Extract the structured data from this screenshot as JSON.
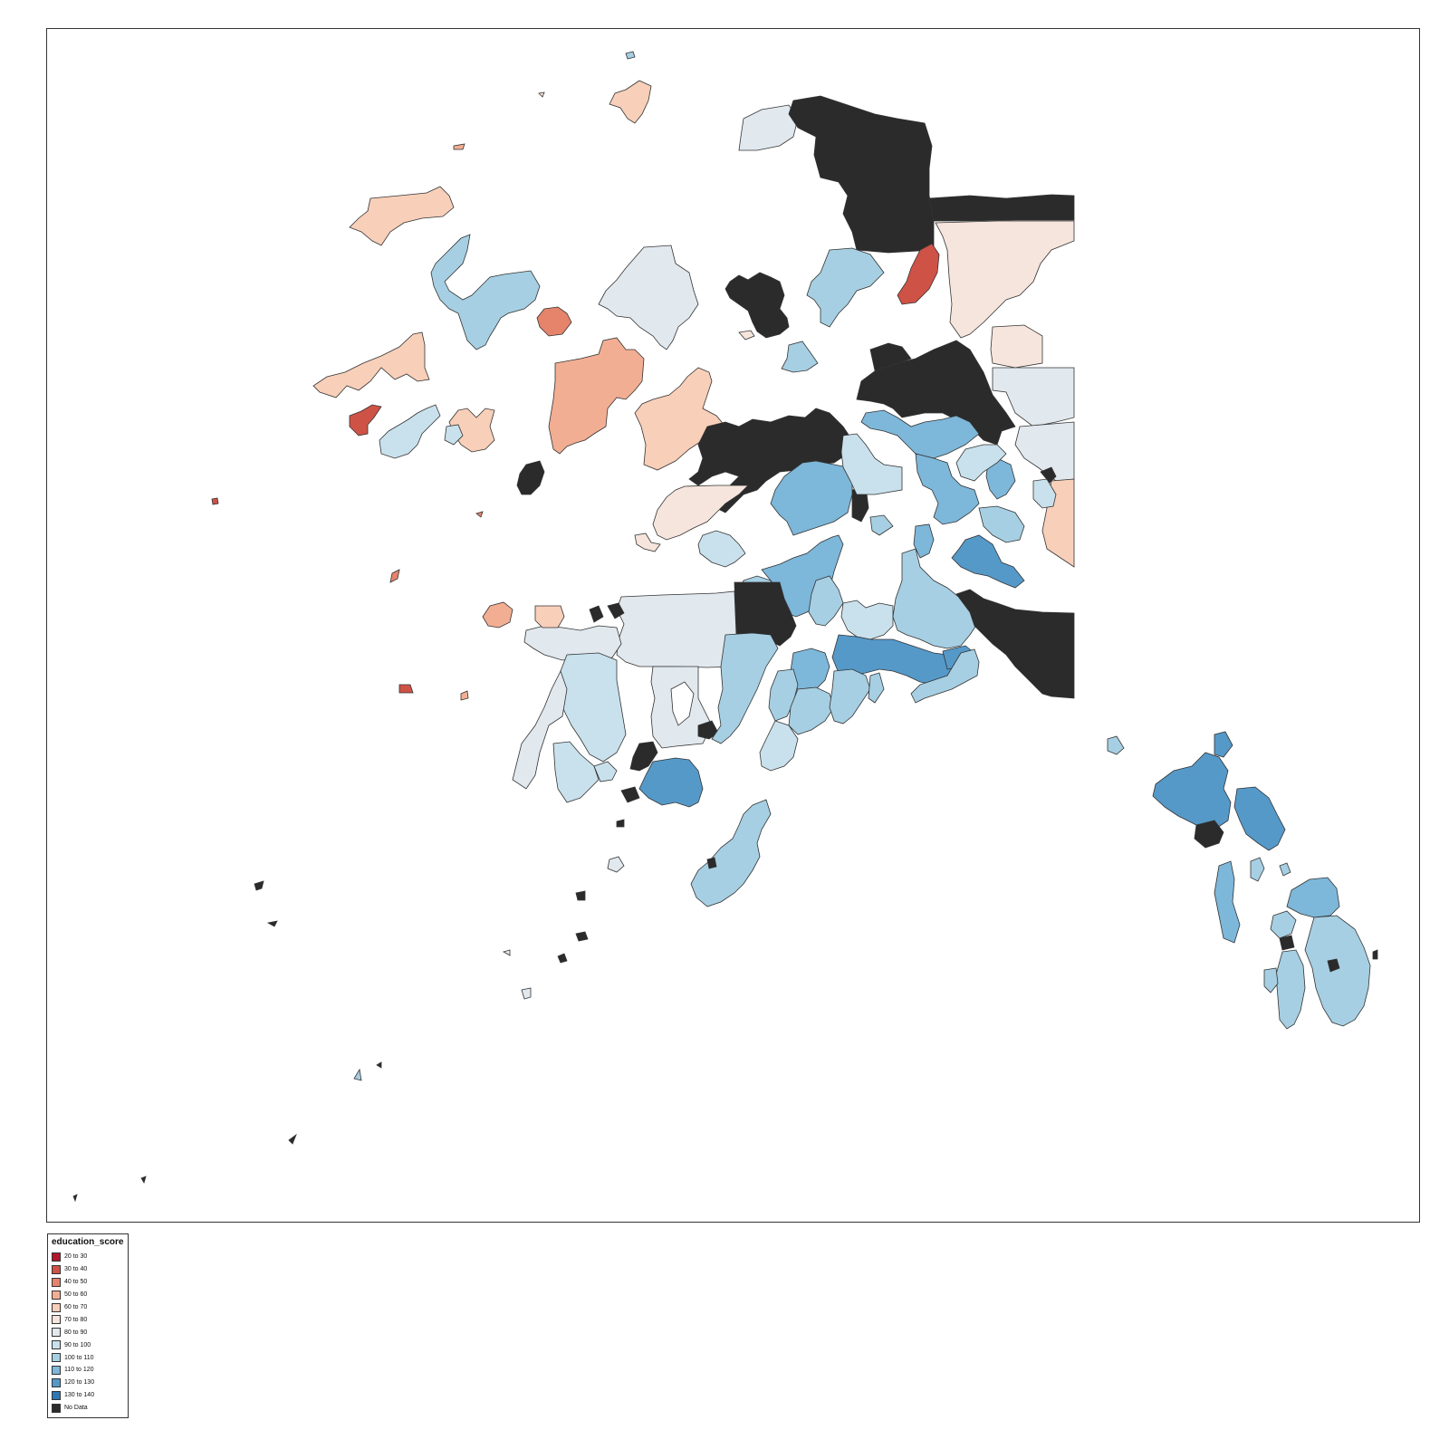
{
  "legend": {
    "title": "education_score",
    "items": [
      {
        "label": "20 to 30",
        "color": "#b2182b"
      },
      {
        "label": "30 to 40",
        "color": "#cf5246"
      },
      {
        "label": "40 to 50",
        "color": "#e5846b"
      },
      {
        "label": "50 to 60",
        "color": "#f2ae93"
      },
      {
        "label": "60 to 70",
        "color": "#f8cfb9"
      },
      {
        "label": "70 to 80",
        "color": "#f6e5dc"
      },
      {
        "label": "80 to 90",
        "color": "#e1e8ee"
      },
      {
        "label": "90 to 100",
        "color": "#c9e1ec"
      },
      {
        "label": "100 to 110",
        "color": "#a6cfe3"
      },
      {
        "label": "110 to 120",
        "color": "#7db7d9"
      },
      {
        "label": "120 to 130",
        "color": "#5599c9"
      },
      {
        "label": "130 to 140",
        "color": "#2f77b4"
      },
      {
        "label": "No Data",
        "color": "#2b2b2b"
      }
    ]
  }
}
